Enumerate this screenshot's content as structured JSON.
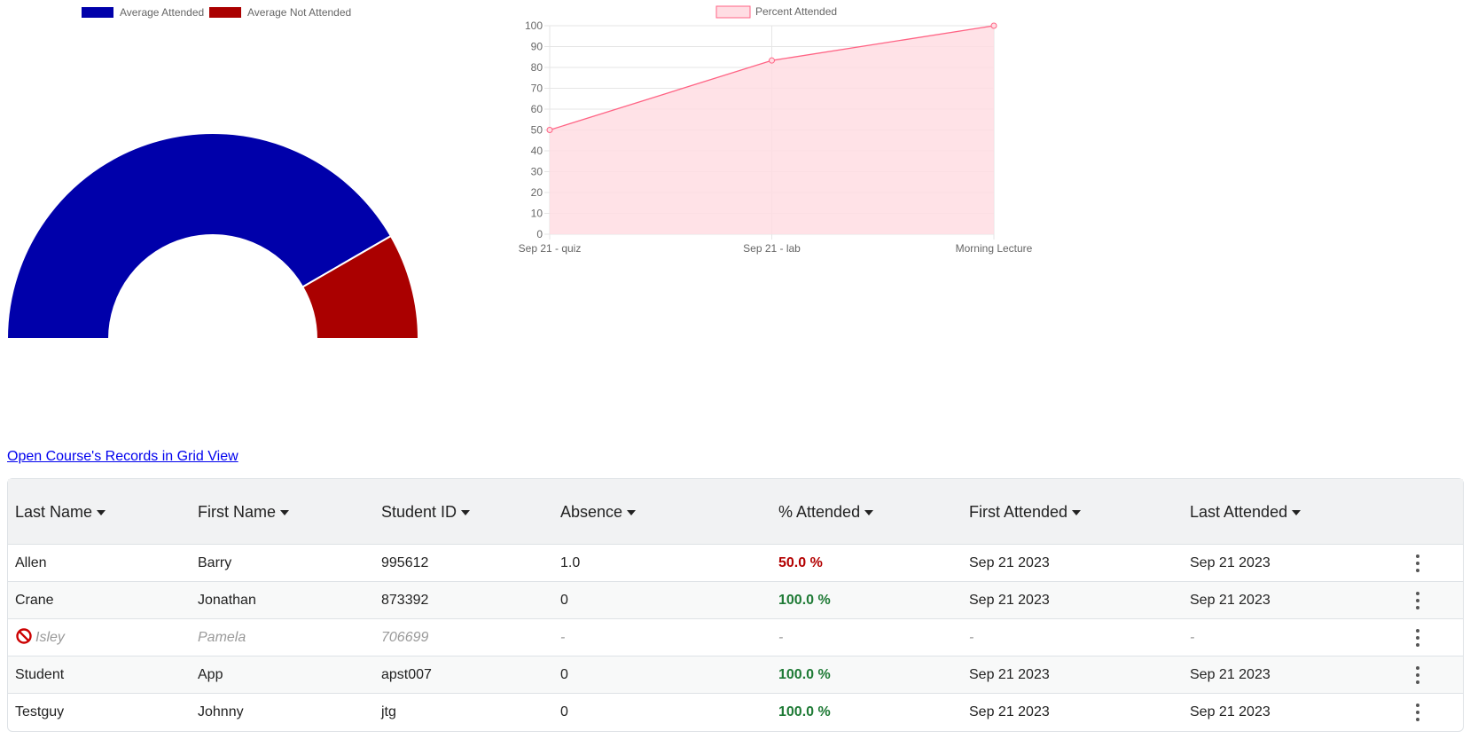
{
  "chart_data": [
    {
      "type": "doughnut",
      "variant": "half",
      "categories": [
        "Average Attended",
        "Average Not Attended"
      ],
      "values": [
        83.33,
        16.67
      ],
      "colors": [
        "#0000aa",
        "#aa0000"
      ],
      "legend": "top"
    },
    {
      "type": "area",
      "categories": [
        "Sep 21 - quiz",
        "Sep 21 - lab",
        "Morning Lecture"
      ],
      "series": [
        {
          "name": "Percent Attended",
          "values": [
            50,
            83.33,
            100
          ],
          "line_color": "#ff6384",
          "fill_color": "#ffdde3"
        }
      ],
      "ylim": [
        0,
        100
      ],
      "yticks": [
        "0",
        "10",
        "20",
        "30",
        "40",
        "50",
        "60",
        "70",
        "80",
        "90",
        "100"
      ],
      "grid": true,
      "legend": "top"
    }
  ],
  "grid_link": {
    "label": "Open Course's Records in Grid View"
  },
  "table": {
    "headers": [
      "Last Name",
      "First Name",
      "Student ID",
      "Absence",
      "% Attended",
      "First Attended",
      "Last Attended"
    ],
    "rows": [
      {
        "last": "Allen",
        "first": "Barry",
        "id": "995612",
        "absence": "1.0",
        "pct": "50.0 %",
        "first_attended": "Sep 21 2023",
        "last_attended": "Sep 21 2023"
      },
      {
        "last": "Crane",
        "first": "Jonathan",
        "id": "873392",
        "absence": "0",
        "pct": "100.0 %",
        "first_attended": "Sep 21 2023",
        "last_attended": "Sep 21 2023"
      },
      {
        "last": "Isley",
        "first": "Pamela",
        "id": "706699",
        "absence": "-",
        "pct": "-",
        "first_attended": "-",
        "last_attended": "-"
      },
      {
        "last": "Student",
        "first": "App",
        "id": "apst007",
        "absence": "0",
        "pct": "100.0 %",
        "first_attended": "Sep 21 2023",
        "last_attended": "Sep 21 2023"
      },
      {
        "last": "Testguy",
        "first": "Johnny",
        "id": "jtg",
        "absence": "0",
        "pct": "100.0 %",
        "first_attended": "Sep 21 2023",
        "last_attended": "Sep 21 2023"
      }
    ]
  }
}
